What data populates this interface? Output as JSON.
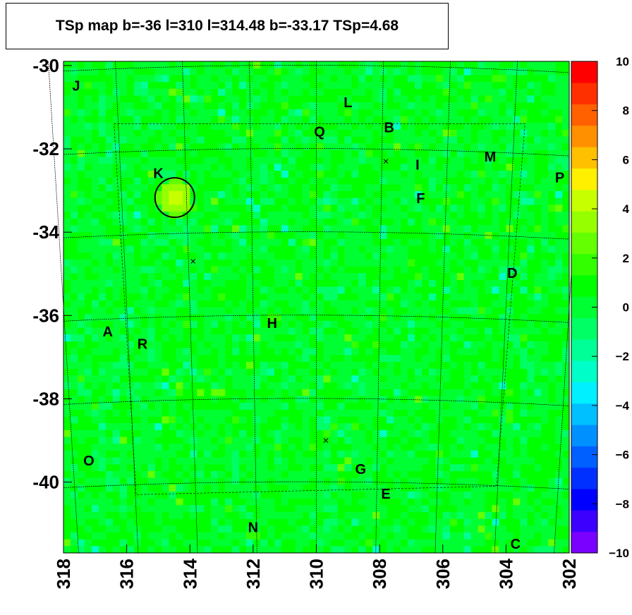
{
  "title": "TSp map b=-36 l=310 l=314.48 b=-33.17 TSp=4.68",
  "chart_data": {
    "type": "heatmap",
    "title": "TSp map b=-36 l=310 l=314.48 b=-33.17 TSp=4.68",
    "xlabel": "",
    "ylabel": "",
    "xlim": [
      318,
      302
    ],
    "ylim": [
      -41.7,
      -29.9
    ],
    "x_ticks": [
      "318",
      "316",
      "314",
      "312",
      "310",
      "308",
      "306",
      "304",
      "302"
    ],
    "y_ticks": [
      "-30",
      "-32",
      "-34",
      "-36",
      "-38",
      "-40"
    ],
    "colorbar": {
      "range": [
        -10,
        10
      ],
      "ticks": [
        "10",
        "8",
        "6",
        "4",
        "2",
        "0",
        "−2",
        "−4",
        "−6",
        "−8",
        "−10"
      ],
      "colors": [
        "#7a00ff",
        "#3c00ff",
        "#0000ff",
        "#0030ff",
        "#0060ff",
        "#0090ff",
        "#00c0ff",
        "#00f0ff",
        "#00ffc8",
        "#00ff96",
        "#00ff64",
        "#00ff32",
        "#00ff00",
        "#32ff00",
        "#64ff00",
        "#96ff00",
        "#c8ff00",
        "#fff000",
        "#ffc000",
        "#ff9000",
        "#ff6000",
        "#ff3000",
        "#ff0000"
      ]
    },
    "background_value_range": [
      -2,
      2
    ],
    "highlight": {
      "l": 314.48,
      "b": -33.17,
      "value": 4.68,
      "marker": "circle"
    },
    "grid_lines": {
      "l": [
        318,
        316,
        314,
        312,
        310,
        308,
        306,
        304,
        302
      ],
      "b": [
        -30,
        -32,
        -34,
        -36,
        -38,
        -40
      ]
    },
    "cross_markers": [
      {
        "l": 307.8,
        "b": -32.3
      },
      {
        "l": 313.9,
        "b": -34.7
      },
      {
        "l": 309.7,
        "b": -39.0
      }
    ],
    "source_labels": [
      {
        "text": "J",
        "l": 317.6,
        "b": -30.6
      },
      {
        "text": "L",
        "l": 309.0,
        "b": -31.0
      },
      {
        "text": "Q",
        "l": 309.9,
        "b": -31.7
      },
      {
        "text": "B",
        "l": 307.7,
        "b": -31.6
      },
      {
        "text": "K",
        "l": 315.0,
        "b": -32.7
      },
      {
        "text": "I",
        "l": 306.8,
        "b": -32.5
      },
      {
        "text": "M",
        "l": 304.5,
        "b": -32.3
      },
      {
        "text": "P",
        "l": 302.3,
        "b": -32.8
      },
      {
        "text": "F",
        "l": 306.7,
        "b": -33.3
      },
      {
        "text": "D",
        "l": 303.8,
        "b": -35.1
      },
      {
        "text": "H",
        "l": 311.4,
        "b": -36.3
      },
      {
        "text": "A",
        "l": 316.6,
        "b": -36.5
      },
      {
        "text": "R",
        "l": 315.5,
        "b": -36.8
      },
      {
        "text": "O",
        "l": 317.2,
        "b": -39.6
      },
      {
        "text": "G",
        "l": 308.6,
        "b": -39.8
      },
      {
        "text": "E",
        "l": 307.8,
        "b": -40.4
      },
      {
        "text": "N",
        "l": 312.0,
        "b": -41.2
      },
      {
        "text": "C",
        "l": 303.7,
        "b": -41.6
      }
    ]
  }
}
